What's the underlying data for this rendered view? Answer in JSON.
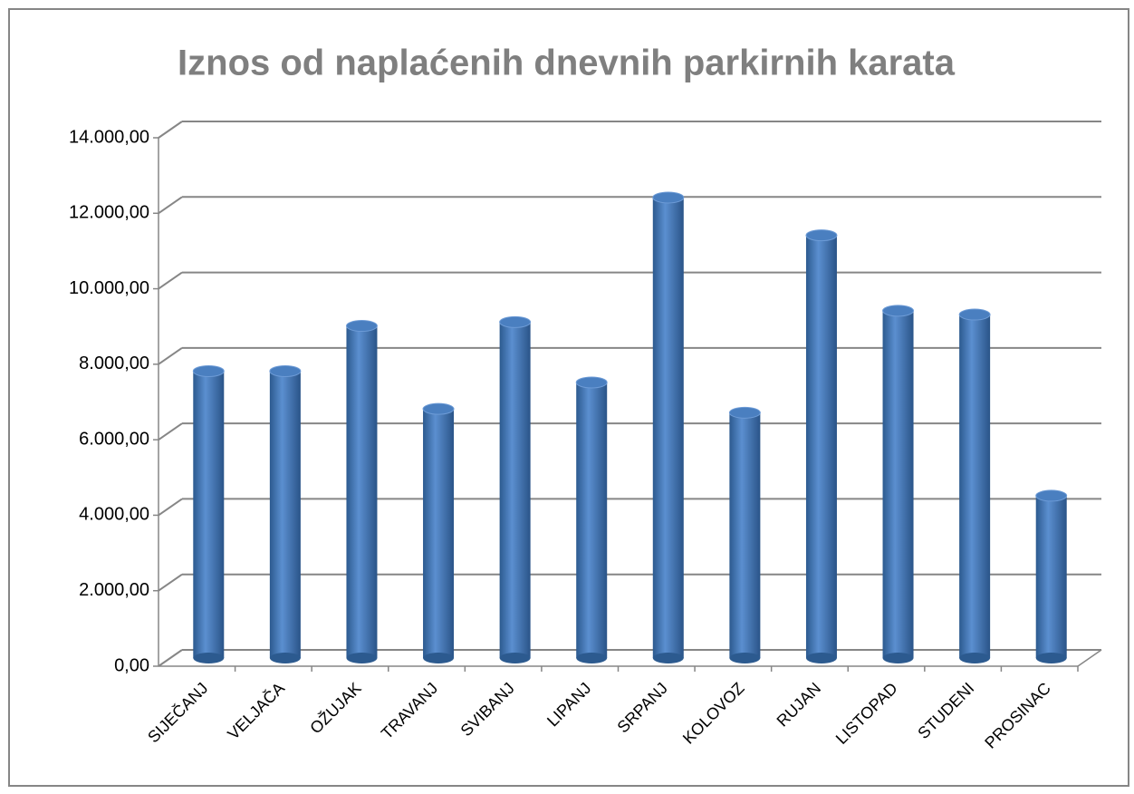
{
  "chart_data": {
    "type": "bar",
    "title": "Iznos od naplaćenih dnevnih parkirnih karata",
    "categories": [
      "SIJEČANJ",
      "VELJAČA",
      "OŽUJAK",
      "TRAVANJ",
      "SVIBANJ",
      "LIPANJ",
      "SRPANJ",
      "KOLOVOZ",
      "RUJAN",
      "LISTOPAD",
      "STUDENI",
      "PROSINAC"
    ],
    "values": [
      7600,
      7600,
      8800,
      6600,
      8900,
      7300,
      12200,
      6500,
      11200,
      9200,
      9100,
      4300
    ],
    "color": "#4f81bd",
    "ylim": [
      0,
      14000
    ],
    "yticks": [
      {
        "value": 0,
        "label": "0,00"
      },
      {
        "value": 2000,
        "label": "2.000,00"
      },
      {
        "value": 4000,
        "label": "4.000,00"
      },
      {
        "value": 6000,
        "label": "6.000,00"
      },
      {
        "value": 8000,
        "label": "8.000,00"
      },
      {
        "value": 10000,
        "label": "10.000,00"
      },
      {
        "value": 12000,
        "label": "12.000,00"
      },
      {
        "value": 14000,
        "label": "14.000,00"
      }
    ],
    "grid": true
  }
}
